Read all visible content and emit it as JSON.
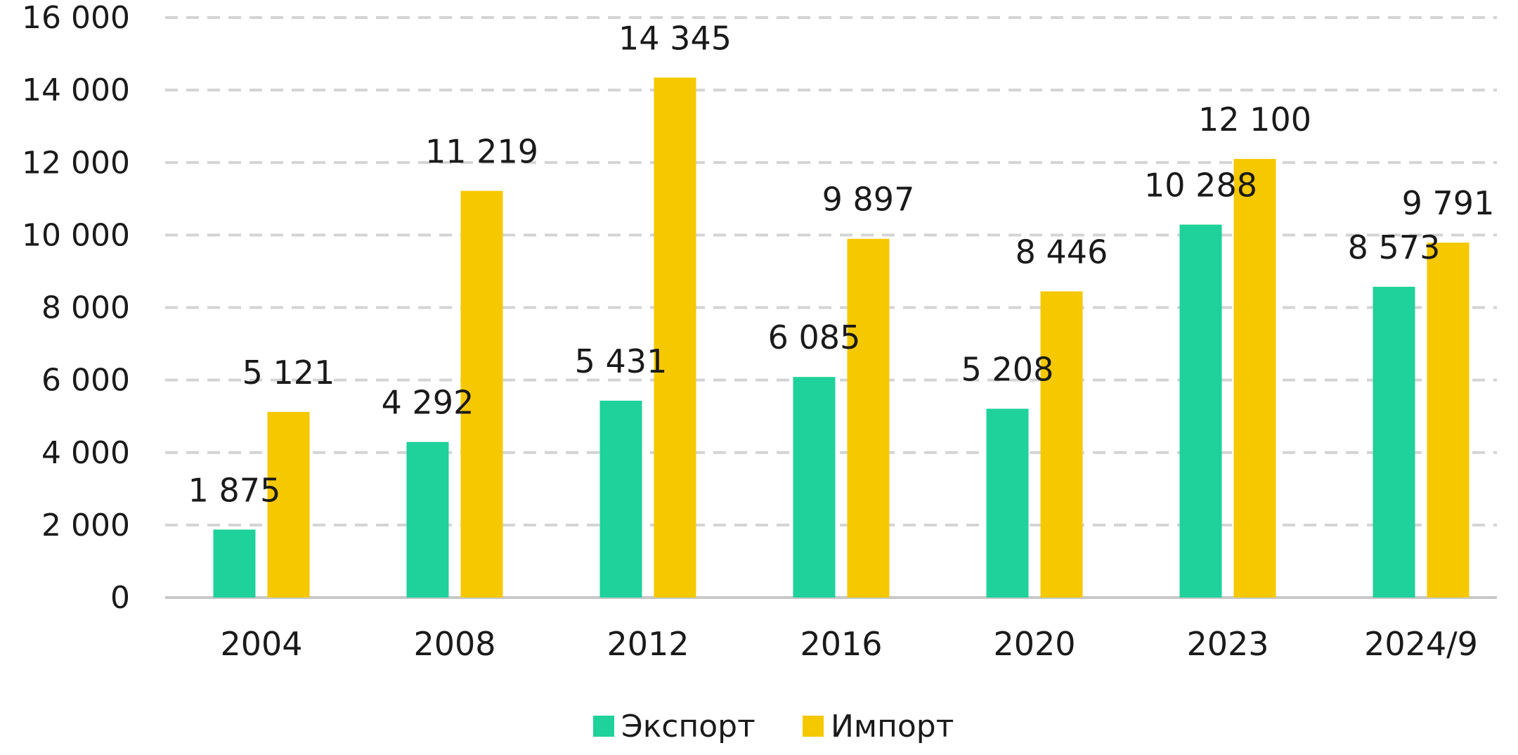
{
  "chart_data": {
    "type": "bar",
    "categories": [
      "2004",
      "2008",
      "2012",
      "2016",
      "2020",
      "2023",
      "2024/9"
    ],
    "series": [
      {
        "name": "Экспорт",
        "color": "#1fd19a",
        "values": [
          1875,
          4292,
          5431,
          6085,
          5208,
          10288,
          8573
        ],
        "labels": [
          "1 875",
          "4 292",
          "5 431",
          "6 085",
          "5 208",
          "10 288",
          "8 573"
        ]
      },
      {
        "name": "Импорт",
        "color": "#f5c800",
        "values": [
          5121,
          11219,
          14345,
          9897,
          8446,
          12100,
          9791
        ],
        "labels": [
          "5 121",
          "11 219",
          "14 345",
          "9 897",
          "8 446",
          "12 100",
          "9 791"
        ]
      }
    ],
    "yticks": [
      0,
      2000,
      4000,
      6000,
      8000,
      10000,
      12000,
      14000,
      16000
    ],
    "ytick_labels": [
      "0",
      "2 000",
      "4 000",
      "6 000",
      "8 000",
      "10 000",
      "12 000",
      "14 000",
      "16 000"
    ],
    "ylim": [
      0,
      16000
    ],
    "grid": "dashed-horizontal",
    "legend_position": "bottom-center",
    "title": "",
    "xlabel": "",
    "ylabel": ""
  }
}
